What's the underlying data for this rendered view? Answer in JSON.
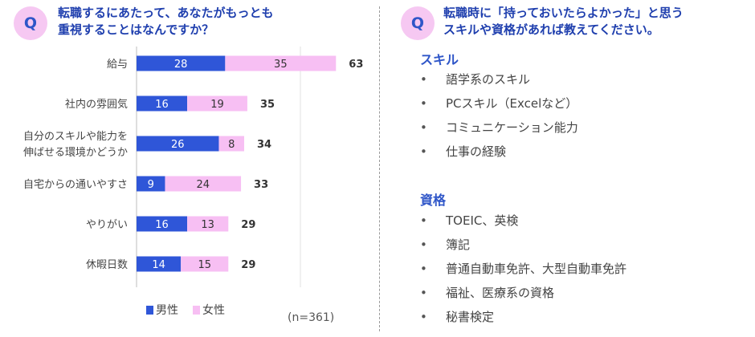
{
  "left": {
    "badge": "Q",
    "title_lines": [
      "転職するにあたって、あなたがもっとも",
      "重視することはなんですか？"
    ]
  },
  "right": {
    "badge": "Q",
    "title_lines": [
      "転職時に「持っておいたらよかった」と思う",
      "スキルや資格があれば教えてください。"
    ],
    "sections": [
      {
        "heading": "スキル",
        "items": [
          "語学系のスキル",
          "PCスキル（Excelなど）",
          "コミュニケーション能力",
          "仕事の経験"
        ]
      },
      {
        "heading": "資格",
        "items": [
          "TOEIC、英検",
          "簿記",
          "普通自動車免許、大型自動車免許",
          "福祉、医療系の資格",
          "秘書検定"
        ]
      }
    ],
    "bullet": "•"
  },
  "legend": {
    "male_label": "男性",
    "female_label": "女性",
    "marker": "■"
  },
  "sample_size": "(n=361)",
  "colors": {
    "male": "#2f56d8",
    "female": "#f7bff3",
    "title": "#1f3fae",
    "badge_bg": "#f6c8f2"
  },
  "chart_data": {
    "type": "bar",
    "orientation": "horizontal",
    "stacked": true,
    "categories": [
      [
        "給与"
      ],
      [
        "社内の雰囲気"
      ],
      [
        "自分のスキルや能力を",
        "伸ばせる環境かどうか"
      ],
      [
        "自宅からの通いやすさ"
      ],
      [
        "やりがい"
      ],
      [
        "休暇日数"
      ]
    ],
    "series": [
      {
        "name": "男性",
        "values": [
          28,
          16,
          26,
          9,
          16,
          14
        ]
      },
      {
        "name": "女性",
        "values": [
          35,
          19,
          8,
          24,
          13,
          15
        ]
      }
    ],
    "totals": [
      63,
      35,
      34,
      33,
      29,
      29
    ],
    "xlim": [
      0,
      68
    ],
    "legend_position": "bottom"
  }
}
